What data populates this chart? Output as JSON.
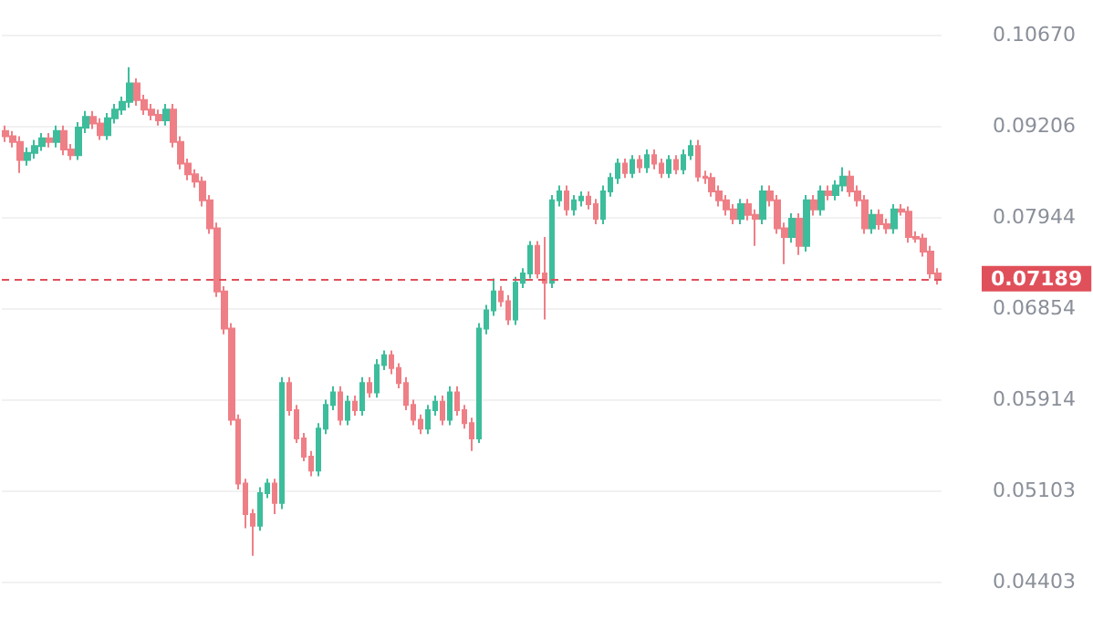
{
  "chart_data": {
    "type": "candlestick",
    "log": "y",
    "grid": "y",
    "ylim": [
      0.04403,
      0.1067
    ],
    "yticks": [
      {
        "value": 0.1067,
        "label": "0.10670"
      },
      0.09206,
      0.07944,
      0.06854,
      0.05914,
      0.05103,
      0.04403
    ],
    "categories": [
      null,
      null,
      null,
      null,
      null,
      null,
      null,
      null,
      null,
      null,
      null,
      null,
      null,
      null,
      null,
      null,
      null,
      null,
      null,
      null,
      null,
      null,
      null,
      null,
      null,
      null,
      null,
      null,
      null,
      null,
      null,
      null,
      null,
      null,
      null,
      null,
      null,
      null,
      null,
      null,
      null,
      null,
      null,
      null,
      null,
      null,
      null,
      null,
      null,
      null,
      null,
      null,
      null,
      null,
      null,
      null,
      null,
      null,
      null,
      null,
      null,
      null,
      null,
      null,
      null,
      null,
      null,
      null,
      null,
      null,
      null,
      null,
      null,
      null,
      null,
      null,
      null,
      null,
      null,
      null,
      null,
      null,
      null,
      null,
      null,
      null,
      null,
      null,
      null,
      null,
      null,
      null,
      null,
      null,
      null,
      null,
      null,
      null,
      null,
      null,
      null,
      null,
      null,
      null,
      null,
      null,
      null,
      null,
      null,
      null,
      null,
      null,
      null,
      null,
      null,
      null,
      null,
      null,
      null,
      null,
      null,
      null,
      null,
      null,
      null,
      null,
      null,
      null,
      null
    ],
    "ref_lines": [
      {
        "axis": "y",
        "value": 0.07189,
        "label": "0.07189",
        "color": "#e0505a",
        "line_style": "dashed"
      }
    ],
    "ohlc": [
      [
        0.0913,
        0.0921,
        0.0897,
        0.0905
      ],
      [
        0.0905,
        0.0913,
        0.0889,
        0.0897
      ],
      [
        0.0897,
        0.0905,
        0.0853,
        0.0871
      ],
      [
        0.0871,
        0.0889,
        0.0863,
        0.0881
      ],
      [
        0.0881,
        0.09,
        0.0873,
        0.0891
      ],
      [
        0.0891,
        0.091,
        0.0884,
        0.0902
      ],
      [
        0.0902,
        0.091,
        0.0889,
        0.0897
      ],
      [
        0.0897,
        0.0921,
        0.0889,
        0.0913
      ],
      [
        0.0913,
        0.0921,
        0.0878,
        0.0886
      ],
      [
        0.0886,
        0.0894,
        0.0871,
        0.0878
      ],
      [
        0.0878,
        0.0926,
        0.0871,
        0.0918
      ],
      [
        0.0918,
        0.0943,
        0.091,
        0.0934
      ],
      [
        0.0934,
        0.0943,
        0.0916,
        0.0924
      ],
      [
        0.0924,
        0.0932,
        0.09,
        0.0907
      ],
      [
        0.0907,
        0.094,
        0.09,
        0.0932
      ],
      [
        0.0932,
        0.0954,
        0.0924,
        0.0945
      ],
      [
        0.0945,
        0.0965,
        0.0937,
        0.0957
      ],
      [
        0.0957,
        0.1012,
        0.0948,
        0.0986
      ],
      [
        0.0986,
        0.0994,
        0.0951,
        0.096
      ],
      [
        0.096,
        0.0968,
        0.0937,
        0.0945
      ],
      [
        0.0945,
        0.0954,
        0.0929,
        0.0937
      ],
      [
        0.0937,
        0.0945,
        0.0921,
        0.0929
      ],
      [
        0.0929,
        0.0954,
        0.0921,
        0.0945
      ],
      [
        0.0945,
        0.0954,
        0.0889,
        0.0897
      ],
      [
        0.0897,
        0.0905,
        0.0858,
        0.0866
      ],
      [
        0.0866,
        0.0873,
        0.0843,
        0.0851
      ],
      [
        0.0851,
        0.0858,
        0.0833,
        0.0841
      ],
      [
        0.0841,
        0.0848,
        0.0808,
        0.0816
      ],
      [
        0.0816,
        0.0823,
        0.0773,
        0.078
      ],
      [
        0.078,
        0.0787,
        0.0698,
        0.0704
      ],
      [
        0.0704,
        0.071,
        0.0657,
        0.0663
      ],
      [
        0.0663,
        0.0669,
        0.0567,
        0.0572
      ],
      [
        0.0572,
        0.0577,
        0.0511,
        0.0516
      ],
      [
        0.0516,
        0.052,
        0.048,
        0.0491
      ],
      [
        0.0491,
        0.0495,
        0.0459,
        0.0482
      ],
      [
        0.0482,
        0.0513,
        0.0478,
        0.0508
      ],
      [
        0.0508,
        0.052,
        0.0504,
        0.0516
      ],
      [
        0.0516,
        0.052,
        0.0491,
        0.05
      ],
      [
        0.05,
        0.0613,
        0.0495,
        0.0607
      ],
      [
        0.0607,
        0.0613,
        0.0576,
        0.0581
      ],
      [
        0.0581,
        0.0586,
        0.0551,
        0.0555
      ],
      [
        0.0555,
        0.056,
        0.0535,
        0.0539
      ],
      [
        0.0539,
        0.0544,
        0.0522,
        0.0527
      ],
      [
        0.0527,
        0.0569,
        0.0522,
        0.0564
      ],
      [
        0.0564,
        0.0591,
        0.0559,
        0.0586
      ],
      [
        0.0586,
        0.0604,
        0.0581,
        0.0598
      ],
      [
        0.0598,
        0.0604,
        0.0567,
        0.0572
      ],
      [
        0.0572,
        0.0595,
        0.0567,
        0.0589
      ],
      [
        0.0589,
        0.0595,
        0.0576,
        0.0581
      ],
      [
        0.0581,
        0.0613,
        0.0576,
        0.0607
      ],
      [
        0.0607,
        0.0613,
        0.0593,
        0.0598
      ],
      [
        0.0598,
        0.0631,
        0.0593,
        0.0625
      ],
      [
        0.0625,
        0.064,
        0.062,
        0.0635
      ],
      [
        0.0635,
        0.064,
        0.0616,
        0.0622
      ],
      [
        0.0622,
        0.0627,
        0.0602,
        0.0607
      ],
      [
        0.0607,
        0.0613,
        0.0581,
        0.0586
      ],
      [
        0.0586,
        0.0591,
        0.0567,
        0.0572
      ],
      [
        0.0572,
        0.0577,
        0.0559,
        0.0564
      ],
      [
        0.0564,
        0.0586,
        0.0559,
        0.0581
      ],
      [
        0.0581,
        0.0595,
        0.0576,
        0.0589
      ],
      [
        0.0589,
        0.0595,
        0.0567,
        0.0572
      ],
      [
        0.0572,
        0.0604,
        0.0567,
        0.0598
      ],
      [
        0.0598,
        0.0604,
        0.0576,
        0.0581
      ],
      [
        0.0581,
        0.0586,
        0.0564,
        0.0569
      ],
      [
        0.0569,
        0.0574,
        0.0544,
        0.0555
      ],
      [
        0.0555,
        0.0669,
        0.0551,
        0.0663
      ],
      [
        0.0663,
        0.0689,
        0.0657,
        0.0683
      ],
      [
        0.0683,
        0.0719,
        0.0677,
        0.0704
      ],
      [
        0.0704,
        0.071,
        0.0687,
        0.0693
      ],
      [
        0.0693,
        0.07,
        0.0667,
        0.0673
      ],
      [
        0.0673,
        0.0721,
        0.0667,
        0.0714
      ],
      [
        0.0714,
        0.0731,
        0.0708,
        0.0725
      ],
      [
        0.0725,
        0.0764,
        0.0719,
        0.0758
      ],
      [
        0.0758,
        0.0764,
        0.0719,
        0.0725
      ],
      [
        0.0725,
        0.0769,
        0.0673,
        0.0714
      ],
      [
        0.0714,
        0.0823,
        0.0708,
        0.0816
      ],
      [
        0.0816,
        0.0836,
        0.0808,
        0.0828
      ],
      [
        0.0828,
        0.0836,
        0.0796,
        0.0804
      ],
      [
        0.0804,
        0.0823,
        0.0796,
        0.0816
      ],
      [
        0.0816,
        0.0828,
        0.0808,
        0.0821
      ],
      [
        0.0821,
        0.0828,
        0.0804,
        0.0811
      ],
      [
        0.0811,
        0.0818,
        0.0785,
        0.0792
      ],
      [
        0.0792,
        0.0836,
        0.0785,
        0.0828
      ],
      [
        0.0828,
        0.0853,
        0.0821,
        0.0846
      ],
      [
        0.0846,
        0.0873,
        0.0838,
        0.0866
      ],
      [
        0.0866,
        0.0873,
        0.0846,
        0.0853
      ],
      [
        0.0853,
        0.0878,
        0.0846,
        0.0871
      ],
      [
        0.0871,
        0.0878,
        0.0853,
        0.0861
      ],
      [
        0.0861,
        0.0886,
        0.0853,
        0.0878
      ],
      [
        0.0878,
        0.0886,
        0.0858,
        0.0866
      ],
      [
        0.0866,
        0.0873,
        0.0846,
        0.0853
      ],
      [
        0.0853,
        0.0878,
        0.0846,
        0.0871
      ],
      [
        0.0871,
        0.0878,
        0.0851,
        0.0858
      ],
      [
        0.0858,
        0.0886,
        0.0851,
        0.0878
      ],
      [
        0.0878,
        0.09,
        0.0871,
        0.0891
      ],
      [
        0.0891,
        0.09,
        0.0841,
        0.0848
      ],
      [
        0.0848,
        0.0856,
        0.0838,
        0.0846
      ],
      [
        0.0846,
        0.0853,
        0.0821,
        0.0828
      ],
      [
        0.0828,
        0.0836,
        0.0808,
        0.0816
      ],
      [
        0.0816,
        0.0823,
        0.0796,
        0.0804
      ],
      [
        0.0804,
        0.0811,
        0.0785,
        0.0792
      ],
      [
        0.0792,
        0.0818,
        0.0785,
        0.0811
      ],
      [
        0.0811,
        0.0818,
        0.079,
        0.0797
      ],
      [
        0.0797,
        0.0804,
        0.0758,
        0.0792
      ],
      [
        0.0792,
        0.0836,
        0.0785,
        0.0828
      ],
      [
        0.0828,
        0.0836,
        0.0808,
        0.0816
      ],
      [
        0.0816,
        0.0823,
        0.0773,
        0.078
      ],
      [
        0.078,
        0.0787,
        0.0736,
        0.0769
      ],
      [
        0.0769,
        0.0799,
        0.0762,
        0.0792
      ],
      [
        0.0792,
        0.0799,
        0.0747,
        0.0758
      ],
      [
        0.0758,
        0.0823,
        0.0751,
        0.0816
      ],
      [
        0.0816,
        0.0823,
        0.0796,
        0.0804
      ],
      [
        0.0804,
        0.0836,
        0.0796,
        0.0828
      ],
      [
        0.0828,
        0.0836,
        0.0816,
        0.0823
      ],
      [
        0.0823,
        0.0843,
        0.0816,
        0.0836
      ],
      [
        0.0836,
        0.0861,
        0.0828,
        0.0848
      ],
      [
        0.0848,
        0.0856,
        0.0821,
        0.0828
      ],
      [
        0.0828,
        0.0836,
        0.0808,
        0.0816
      ],
      [
        0.0816,
        0.0823,
        0.0773,
        0.078
      ],
      [
        0.078,
        0.0804,
        0.0773,
        0.0797
      ],
      [
        0.0797,
        0.0804,
        0.0778,
        0.0785
      ],
      [
        0.0785,
        0.0792,
        0.0773,
        0.078
      ],
      [
        0.078,
        0.0811,
        0.0773,
        0.0804
      ],
      [
        0.0804,
        0.0811,
        0.0796,
        0.0801
      ],
      [
        0.0801,
        0.0808,
        0.0762,
        0.0769
      ],
      [
        0.0769,
        0.0776,
        0.0762,
        0.0767
      ],
      [
        0.0767,
        0.0773,
        0.0745,
        0.0751
      ],
      [
        0.0751,
        0.0758,
        0.0719,
        0.0725
      ],
      [
        0.0725,
        0.0731,
        0.0712,
        0.07189
      ]
    ]
  }
}
